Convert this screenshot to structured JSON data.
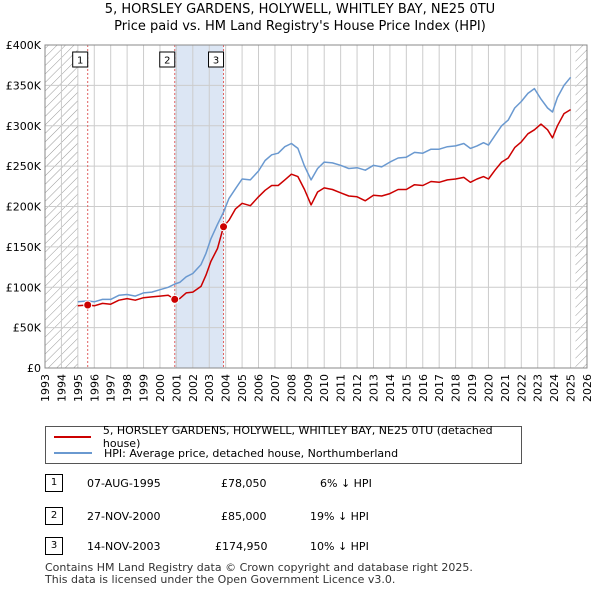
{
  "title_line1": "5, HORSLEY GARDENS, HOLYWELL, WHITLEY BAY, NE25 0TU",
  "title_line2": "Price paid vs. HM Land Registry's House Price Index (HPI)",
  "colors": {
    "property": "#cc0000",
    "hpi": "#6a99d0",
    "band": "#dce6f4",
    "sale_line": "#e06060",
    "grid": "#cccccc"
  },
  "chart_data": {
    "type": "line",
    "x_range": [
      1993,
      2026
    ],
    "ylim": [
      0,
      400000
    ],
    "y_ticks": [
      {
        "value": 0,
        "label": "£0"
      },
      {
        "value": 50000,
        "label": "£50K"
      },
      {
        "value": 100000,
        "label": "£100K"
      },
      {
        "value": 150000,
        "label": "£150K"
      },
      {
        "value": 200000,
        "label": "£200K"
      },
      {
        "value": 250000,
        "label": "£250K"
      },
      {
        "value": 300000,
        "label": "£300K"
      },
      {
        "value": 350000,
        "label": "£350K"
      },
      {
        "value": 400000,
        "label": "£400K"
      }
    ],
    "x_ticks": [
      "1993",
      "1994",
      "1995",
      "1996",
      "1997",
      "1998",
      "1999",
      "2000",
      "2001",
      "2002",
      "2003",
      "2004",
      "2005",
      "2006",
      "2007",
      "2008",
      "2009",
      "2010",
      "2011",
      "2012",
      "2013",
      "2014",
      "2015",
      "2016",
      "2017",
      "2018",
      "2019",
      "2020",
      "2021",
      "2022",
      "2023",
      "2024",
      "2025",
      "2026"
    ],
    "data_start": 1995.0,
    "data_end": 2025.3,
    "series": [
      {
        "name": "5, HORSLEY GARDENS, HOLYWELL, WHITLEY BAY, NE25 0TU (detached house)",
        "color": "#cc0000",
        "points": [
          [
            1995.0,
            77000
          ],
          [
            1995.6,
            78050
          ],
          [
            1996.0,
            77000
          ],
          [
            1996.5,
            80000
          ],
          [
            1997.0,
            79000
          ],
          [
            1997.5,
            84000
          ],
          [
            1998.0,
            86000
          ],
          [
            1998.5,
            84000
          ],
          [
            1999.0,
            87000
          ],
          [
            1999.5,
            88000
          ],
          [
            2000.0,
            89000
          ],
          [
            2000.5,
            90000
          ],
          [
            2000.9,
            85000
          ],
          [
            2001.2,
            86000
          ],
          [
            2001.6,
            93000
          ],
          [
            2002.0,
            94000
          ],
          [
            2002.5,
            101000
          ],
          [
            2002.8,
            115000
          ],
          [
            2003.1,
            132000
          ],
          [
            2003.5,
            148000
          ],
          [
            2003.87,
            174950
          ],
          [
            2004.2,
            183000
          ],
          [
            2004.6,
            197000
          ],
          [
            2005.0,
            204000
          ],
          [
            2005.5,
            201000
          ],
          [
            2006.0,
            212000
          ],
          [
            2006.4,
            220000
          ],
          [
            2006.8,
            226000
          ],
          [
            2007.2,
            226000
          ],
          [
            2007.6,
            233000
          ],
          [
            2008.0,
            240000
          ],
          [
            2008.4,
            237000
          ],
          [
            2008.8,
            221000
          ],
          [
            2009.2,
            202000
          ],
          [
            2009.6,
            218000
          ],
          [
            2010.0,
            223000
          ],
          [
            2010.5,
            221000
          ],
          [
            2011.0,
            217000
          ],
          [
            2011.5,
            213000
          ],
          [
            2012.0,
            212000
          ],
          [
            2012.5,
            207000
          ],
          [
            2013.0,
            214000
          ],
          [
            2013.5,
            213000
          ],
          [
            2014.0,
            216000
          ],
          [
            2014.5,
            221000
          ],
          [
            2015.0,
            221000
          ],
          [
            2015.5,
            227000
          ],
          [
            2016.0,
            226000
          ],
          [
            2016.5,
            231000
          ],
          [
            2017.0,
            230000
          ],
          [
            2017.5,
            233000
          ],
          [
            2018.0,
            234000
          ],
          [
            2018.5,
            236000
          ],
          [
            2018.9,
            230000
          ],
          [
            2019.3,
            234000
          ],
          [
            2019.7,
            237000
          ],
          [
            2020.0,
            234000
          ],
          [
            2020.4,
            245000
          ],
          [
            2020.8,
            255000
          ],
          [
            2021.2,
            260000
          ],
          [
            2021.6,
            273000
          ],
          [
            2022.0,
            280000
          ],
          [
            2022.4,
            290000
          ],
          [
            2022.8,
            295000
          ],
          [
            2023.2,
            302000
          ],
          [
            2023.6,
            295000
          ],
          [
            2023.9,
            285000
          ],
          [
            2024.2,
            300000
          ],
          [
            2024.6,
            315000
          ],
          [
            2025.0,
            320000
          ]
        ]
      },
      {
        "name": "HPI: Average price, detached house, Northumberland",
        "color": "#6a99d0",
        "points": [
          [
            1995.0,
            82000
          ],
          [
            1995.6,
            83000
          ],
          [
            1996.0,
            82000
          ],
          [
            1996.5,
            85000
          ],
          [
            1997.0,
            85000
          ],
          [
            1997.5,
            90000
          ],
          [
            1998.0,
            91000
          ],
          [
            1998.5,
            89000
          ],
          [
            1999.0,
            93000
          ],
          [
            1999.5,
            94000
          ],
          [
            2000.0,
            97000
          ],
          [
            2000.5,
            100000
          ],
          [
            2000.9,
            104000
          ],
          [
            2001.2,
            106000
          ],
          [
            2001.6,
            113000
          ],
          [
            2002.0,
            117000
          ],
          [
            2002.5,
            128000
          ],
          [
            2002.8,
            142000
          ],
          [
            2003.1,
            160000
          ],
          [
            2003.5,
            178000
          ],
          [
            2003.87,
            193000
          ],
          [
            2004.2,
            210000
          ],
          [
            2004.6,
            222000
          ],
          [
            2005.0,
            234000
          ],
          [
            2005.5,
            233000
          ],
          [
            2006.0,
            244000
          ],
          [
            2006.4,
            257000
          ],
          [
            2006.8,
            264000
          ],
          [
            2007.2,
            266000
          ],
          [
            2007.6,
            274000
          ],
          [
            2008.0,
            278000
          ],
          [
            2008.4,
            272000
          ],
          [
            2008.8,
            250000
          ],
          [
            2009.2,
            233000
          ],
          [
            2009.6,
            247000
          ],
          [
            2010.0,
            255000
          ],
          [
            2010.5,
            254000
          ],
          [
            2011.0,
            251000
          ],
          [
            2011.5,
            247000
          ],
          [
            2012.0,
            248000
          ],
          [
            2012.5,
            245000
          ],
          [
            2013.0,
            251000
          ],
          [
            2013.5,
            249000
          ],
          [
            2014.0,
            255000
          ],
          [
            2014.5,
            260000
          ],
          [
            2015.0,
            261000
          ],
          [
            2015.5,
            267000
          ],
          [
            2016.0,
            266000
          ],
          [
            2016.5,
            271000
          ],
          [
            2017.0,
            271000
          ],
          [
            2017.5,
            274000
          ],
          [
            2018.0,
            275000
          ],
          [
            2018.5,
            278000
          ],
          [
            2018.9,
            272000
          ],
          [
            2019.3,
            275000
          ],
          [
            2019.7,
            279000
          ],
          [
            2020.0,
            276000
          ],
          [
            2020.4,
            288000
          ],
          [
            2020.8,
            300000
          ],
          [
            2021.2,
            307000
          ],
          [
            2021.6,
            322000
          ],
          [
            2022.0,
            330000
          ],
          [
            2022.4,
            340000
          ],
          [
            2022.8,
            346000
          ],
          [
            2023.2,
            333000
          ],
          [
            2023.6,
            322000
          ],
          [
            2023.9,
            317000
          ],
          [
            2024.2,
            335000
          ],
          [
            2024.6,
            350000
          ],
          [
            2025.0,
            360000
          ]
        ]
      }
    ],
    "annotations": [
      {
        "label": "1",
        "date": 1995.6,
        "price": 78050
      },
      {
        "label": "2",
        "date": 2000.9,
        "price": 85000
      },
      {
        "label": "3",
        "date": 2003.87,
        "price": 174950
      }
    ],
    "shaded_bands": [
      [
        2000.9,
        2003.87
      ]
    ],
    "hatched_regions": [
      [
        1993,
        1995.0
      ],
      [
        2025.3,
        2026
      ]
    ]
  },
  "legend": {
    "property_label": "5, HORSLEY GARDENS, HOLYWELL, WHITLEY BAY, NE25 0TU (detached house)",
    "hpi_label": "HPI: Average price, detached house, Northumberland"
  },
  "transactions": [
    {
      "num": "1",
      "date": "07-AUG-1995",
      "price": "£78,050",
      "delta": "6% ↓ HPI"
    },
    {
      "num": "2",
      "date": "27-NOV-2000",
      "price": "£85,000",
      "delta": "19% ↓ HPI"
    },
    {
      "num": "3",
      "date": "14-NOV-2003",
      "price": "£174,950",
      "delta": "10% ↓ HPI"
    }
  ],
  "footer_line1": "Contains HM Land Registry data © Crown copyright and database right 2025.",
  "footer_line2": "This data is licensed under the Open Government Licence v3.0."
}
